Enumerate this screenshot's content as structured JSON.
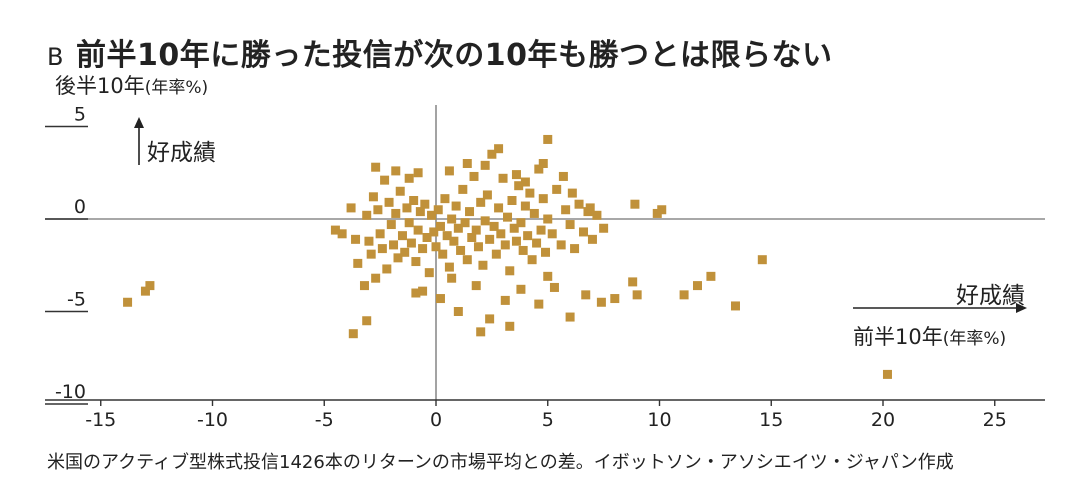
{
  "panel_letter": "B",
  "title": "前半10年に勝った投信が次の10年も勝つとは限らない",
  "source_note": "米国のアクティブ型株式投信1426本のリターンの市場平均との差。イボットソン・アソシエイツ・ジャパン作成",
  "colors": {
    "points": "#c0913a",
    "axis": "#8c8c8c",
    "text": "#222222"
  },
  "chart_data": {
    "type": "scatter",
    "title": "前半10年に勝った投信が次の10年も勝つとは限らない",
    "xlabel": {
      "main": "前半10年",
      "unit": "(年率%)",
      "direction": "好成績"
    },
    "ylabel": {
      "main": "後半10年",
      "unit": "(年率%)",
      "direction": "好成績"
    },
    "xlim": [
      -15,
      27
    ],
    "ylim": [
      -10.5,
      7.5
    ],
    "xticks": [
      "-15",
      "-10",
      "-5",
      "0",
      "5",
      "10",
      "15",
      "20",
      "25"
    ],
    "yticks": [
      "5",
      "0",
      "-5",
      "-10"
    ],
    "grid": false,
    "legend": "none",
    "points": [
      [
        -13.8,
        -4.5
      ],
      [
        -13.0,
        -3.9
      ],
      [
        -12.8,
        -3.6
      ],
      [
        -4.5,
        -0.6
      ],
      [
        -4.2,
        -0.8
      ],
      [
        -3.8,
        0.6
      ],
      [
        -3.6,
        -1.1
      ],
      [
        -3.5,
        -2.4
      ],
      [
        -3.2,
        -3.6
      ],
      [
        -3.1,
        0.2
      ],
      [
        -3.0,
        -1.2
      ],
      [
        -2.9,
        -1.9
      ],
      [
        -2.8,
        1.2
      ],
      [
        -2.6,
        0.5
      ],
      [
        -2.5,
        -0.8
      ],
      [
        -2.4,
        -1.6
      ],
      [
        -2.3,
        2.1
      ],
      [
        -2.2,
        -2.7
      ],
      [
        -2.1,
        0.9
      ],
      [
        -2.0,
        -0.3
      ],
      [
        -1.9,
        -1.4
      ],
      [
        -1.8,
        0.3
      ],
      [
        -1.7,
        -2.1
      ],
      [
        -1.6,
        1.5
      ],
      [
        -1.5,
        -0.9
      ],
      [
        -1.4,
        -1.8
      ],
      [
        -1.3,
        0.6
      ],
      [
        -1.2,
        -0.2
      ],
      [
        -1.1,
        -1.3
      ],
      [
        -1.0,
        1.0
      ],
      [
        -0.9,
        -2.3
      ],
      [
        -0.8,
        -0.6
      ],
      [
        -0.7,
        0.4
      ],
      [
        -0.6,
        -1.6
      ],
      [
        -0.5,
        0.8
      ],
      [
        -0.4,
        -1.0
      ],
      [
        -0.3,
        -2.9
      ],
      [
        -0.2,
        0.2
      ],
      [
        -0.1,
        -0.7
      ],
      [
        0.0,
        -1.5
      ],
      [
        0.1,
        0.5
      ],
      [
        0.2,
        -0.4
      ],
      [
        0.3,
        -1.9
      ],
      [
        0.4,
        1.1
      ],
      [
        0.5,
        -0.9
      ],
      [
        0.6,
        -2.6
      ],
      [
        0.7,
        0.0
      ],
      [
        0.8,
        -1.2
      ],
      [
        0.9,
        0.7
      ],
      [
        1.0,
        -0.5
      ],
      [
        1.1,
        -1.7
      ],
      [
        1.2,
        1.6
      ],
      [
        1.3,
        -0.2
      ],
      [
        1.4,
        -2.2
      ],
      [
        1.5,
        0.4
      ],
      [
        1.6,
        -1.0
      ],
      [
        1.7,
        2.3
      ],
      [
        1.8,
        -0.6
      ],
      [
        1.9,
        -1.5
      ],
      [
        2.0,
        0.9
      ],
      [
        2.1,
        -2.5
      ],
      [
        2.2,
        -0.1
      ],
      [
        2.3,
        1.3
      ],
      [
        2.4,
        -1.1
      ],
      [
        2.5,
        3.5
      ],
      [
        2.6,
        -0.4
      ],
      [
        2.7,
        -1.9
      ],
      [
        2.8,
        0.6
      ],
      [
        2.9,
        -0.8
      ],
      [
        3.0,
        2.2
      ],
      [
        3.1,
        -1.4
      ],
      [
        3.2,
        0.1
      ],
      [
        3.3,
        -2.8
      ],
      [
        3.4,
        1.0
      ],
      [
        3.5,
        -0.5
      ],
      [
        3.6,
        -1.2
      ],
      [
        3.7,
        1.8
      ],
      [
        3.8,
        -0.2
      ],
      [
        3.9,
        -1.7
      ],
      [
        4.0,
        0.7
      ],
      [
        4.1,
        -0.9
      ],
      [
        4.2,
        1.4
      ],
      [
        4.3,
        -2.2
      ],
      [
        4.4,
        0.3
      ],
      [
        4.5,
        -1.3
      ],
      [
        4.6,
        2.7
      ],
      [
        4.7,
        -0.6
      ],
      [
        4.8,
        1.1
      ],
      [
        4.9,
        -1.8
      ],
      [
        5.0,
        0.0
      ],
      [
        5.2,
        -0.8
      ],
      [
        5.4,
        1.6
      ],
      [
        5.6,
        -1.4
      ],
      [
        5.8,
        0.5
      ],
      [
        6.0,
        -0.3
      ],
      [
        6.2,
        -1.6
      ],
      [
        6.4,
        0.8
      ],
      [
        6.6,
        -0.7
      ],
      [
        6.8,
        0.4
      ],
      [
        7.0,
        -1.1
      ],
      [
        7.2,
        0.2
      ],
      [
        -2.7,
        -3.2
      ],
      [
        -0.6,
        -3.9
      ],
      [
        0.2,
        -4.3
      ],
      [
        1.0,
        -5.0
      ],
      [
        1.8,
        -3.6
      ],
      [
        2.4,
        -5.4
      ],
      [
        3.1,
        -4.4
      ],
      [
        3.8,
        -3.8
      ],
      [
        4.6,
        -4.6
      ],
      [
        5.3,
        -3.7
      ],
      [
        6.0,
        -5.3
      ],
      [
        6.7,
        -4.1
      ],
      [
        7.4,
        -4.5
      ],
      [
        8.0,
        -4.3
      ],
      [
        -3.7,
        -6.2
      ],
      [
        -3.1,
        -5.5
      ],
      [
        2.0,
        -6.1
      ],
      [
        3.3,
        -5.8
      ],
      [
        5.0,
        -3.1
      ],
      [
        0.7,
        -3.2
      ],
      [
        -0.9,
        -4.0
      ],
      [
        -1.8,
        2.6
      ],
      [
        -2.7,
        2.8
      ],
      [
        1.4,
        3.0
      ],
      [
        2.2,
        2.9
      ],
      [
        3.6,
        2.4
      ],
      [
        4.8,
        3.0
      ],
      [
        5.7,
        2.3
      ],
      [
        6.1,
        1.4
      ],
      [
        6.9,
        0.6
      ],
      [
        7.5,
        -0.5
      ],
      [
        8.9,
        0.8
      ],
      [
        9.9,
        0.3
      ],
      [
        10.1,
        0.5
      ],
      [
        8.8,
        -3.4
      ],
      [
        9.0,
        -4.1
      ],
      [
        11.1,
        -4.1
      ],
      [
        11.7,
        -3.6
      ],
      [
        12.3,
        -3.1
      ],
      [
        13.4,
        -4.7
      ],
      [
        14.6,
        -2.2
      ],
      [
        5.0,
        4.3
      ],
      [
        2.8,
        3.8
      ],
      [
        4.0,
        2.0
      ],
      [
        -0.8,
        2.5
      ],
      [
        0.6,
        2.6
      ],
      [
        -1.2,
        2.2
      ],
      [
        20.2,
        -8.4
      ]
    ]
  }
}
